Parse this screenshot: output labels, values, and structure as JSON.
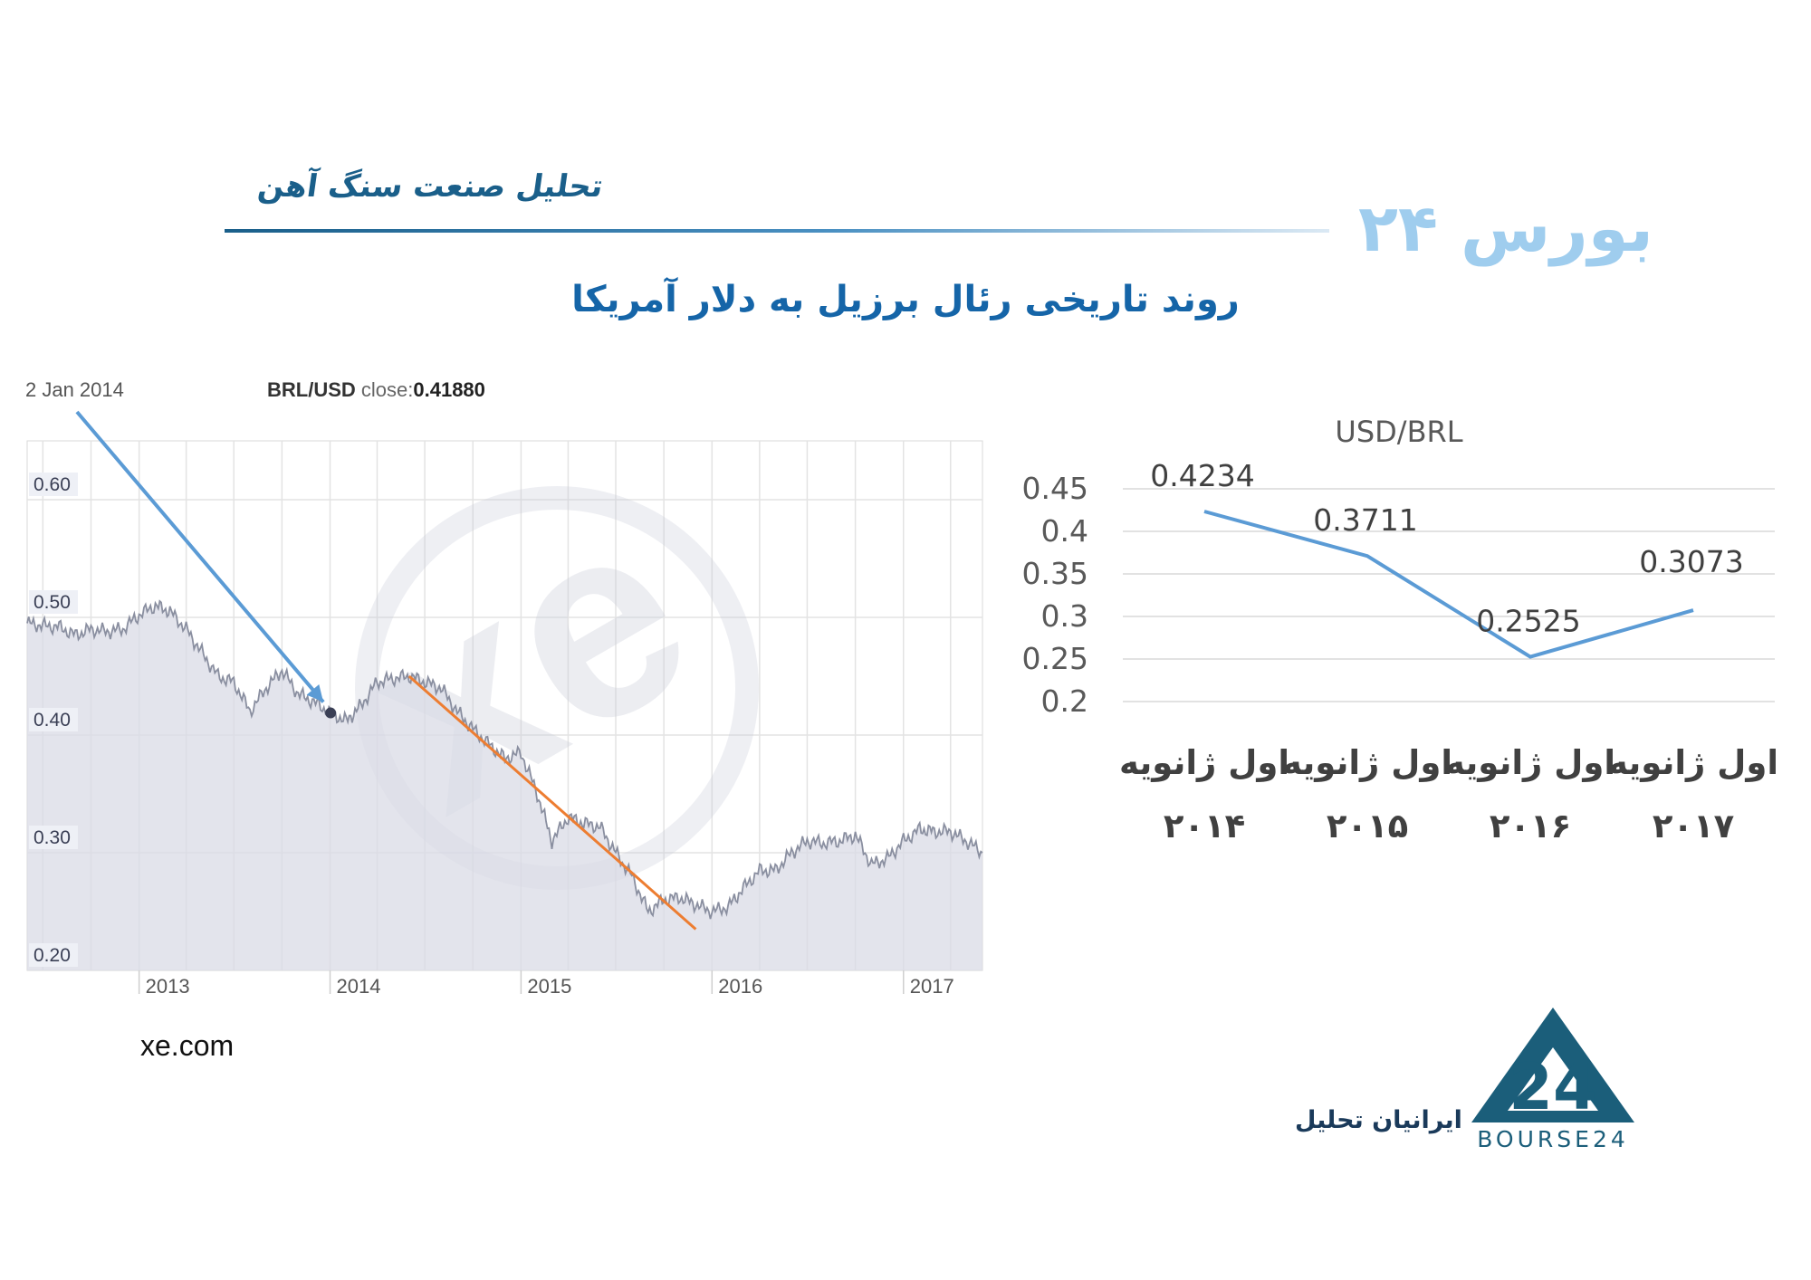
{
  "header": {
    "subtitle": "تحلیل صنعت سنگ آهن",
    "logo_text": "بورس ۲۴"
  },
  "title": "روند تاریخی رئال برزیل به دلار آمریکا",
  "left_chart": {
    "tooltip_date": "2 Jan 2014",
    "pair_label": "BRL/USD",
    "close_label": " close:",
    "close_value": "0.41880",
    "source": "xe.com",
    "watermark": "xe",
    "y_ticks": [
      "0.60",
      "0.50",
      "0.40",
      "0.30",
      "0.20"
    ],
    "x_ticks": [
      "2013",
      "2014",
      "2015",
      "2016",
      "2017"
    ],
    "colors": {
      "line": "#8a8fa0",
      "fill": "#d9dbe6",
      "arrow": "#5b9bd5",
      "trend": "#ed7d31"
    }
  },
  "chart_data": [
    {
      "type": "area",
      "title": "",
      "series": [
        {
          "name": "BRL/USD",
          "x": [
            "2012-06-01",
            "2012-07-01",
            "2012-08-01",
            "2012-09-01",
            "2012-10-01",
            "2012-11-01",
            "2012-12-01",
            "2013-01-01",
            "2013-02-01",
            "2013-03-01",
            "2013-04-01",
            "2013-05-01",
            "2013-06-01",
            "2013-07-01",
            "2013-08-01",
            "2013-09-01",
            "2013-10-01",
            "2013-11-01",
            "2013-12-01",
            "2014-01-02",
            "2014-02-01",
            "2014-03-01",
            "2014-04-01",
            "2014-05-01",
            "2014-06-01",
            "2014-07-01",
            "2014-08-01",
            "2014-09-01",
            "2014-10-01",
            "2014-11-01",
            "2014-12-01",
            "2015-01-01",
            "2015-02-01",
            "2015-03-01",
            "2015-04-01",
            "2015-05-01",
            "2015-06-01",
            "2015-07-01",
            "2015-08-01",
            "2015-09-01",
            "2015-10-01",
            "2015-11-01",
            "2015-12-01",
            "2016-01-01",
            "2016-02-01",
            "2016-03-01",
            "2016-04-01",
            "2016-05-01",
            "2016-06-01",
            "2016-07-01",
            "2016-08-01",
            "2016-09-01",
            "2016-10-01",
            "2016-11-01",
            "2016-12-01",
            "2017-01-01",
            "2017-02-01",
            "2017-03-01",
            "2017-04-01",
            "2017-05-01",
            "2017-06-01"
          ],
          "values": [
            0.495,
            0.493,
            0.492,
            0.485,
            0.49,
            0.488,
            0.49,
            0.502,
            0.51,
            0.505,
            0.49,
            0.47,
            0.45,
            0.445,
            0.42,
            0.44,
            0.455,
            0.435,
            0.428,
            0.4188,
            0.412,
            0.425,
            0.445,
            0.448,
            0.45,
            0.445,
            0.44,
            0.42,
            0.405,
            0.392,
            0.38,
            0.385,
            0.35,
            0.31,
            0.33,
            0.325,
            0.322,
            0.3,
            0.28,
            0.25,
            0.26,
            0.262,
            0.256,
            0.25,
            0.254,
            0.27,
            0.285,
            0.285,
            0.3,
            0.31,
            0.308,
            0.31,
            0.315,
            0.29,
            0.295,
            0.31,
            0.32,
            0.318,
            0.318,
            0.31,
            0.3
          ]
        }
      ],
      "xlabel": "",
      "ylabel": "",
      "ylim": [
        0.2,
        0.65
      ],
      "xlim": [
        "2012-06-01",
        "2017-06-01"
      ],
      "grid": true,
      "highlight_point": {
        "x": "2014-01-02",
        "y": 0.4188
      },
      "trendline": {
        "from": {
          "x": "2014-06-01",
          "y": 0.45
        },
        "to": {
          "x": "2015-12-01",
          "y": 0.235
        }
      }
    },
    {
      "type": "line",
      "title": "USD/BRL",
      "categories": [
        "اول ژانویه ۲۰۱۴",
        "اول ژانویه ۲۰۱۵",
        "اول ژانویه ۲۰۱۶",
        "اول ژانویه ۲۰۱۷"
      ],
      "category_lines": [
        [
          "اول ژانویه",
          "۲۰۱۴"
        ],
        [
          "اول ژانویه",
          "۲۰۱۵"
        ],
        [
          "اول ژانویه",
          "۲۰۱۶"
        ],
        [
          "اول ژانویه",
          "۲۰۱۷"
        ]
      ],
      "series": [
        {
          "values": [
            0.4234,
            0.3711,
            0.2525,
            0.3073
          ]
        }
      ],
      "data_labels": [
        "0.4234",
        "0.3711",
        "0.2525",
        "0.3073"
      ],
      "y_ticks": [
        "0.45",
        "0.4",
        "0.35",
        "0.3",
        "0.25",
        "0.2"
      ],
      "xlabel": "",
      "ylabel": "",
      "ylim": [
        0.2,
        0.45
      ],
      "grid": true,
      "legend": "none"
    }
  ],
  "footer": {
    "brand_text": "ایرانیان تحلیل",
    "brand_logo_text": "BOURSE24",
    "brand_logo_number": "24",
    "colors": {
      "logo": "#1b5e7a"
    }
  }
}
